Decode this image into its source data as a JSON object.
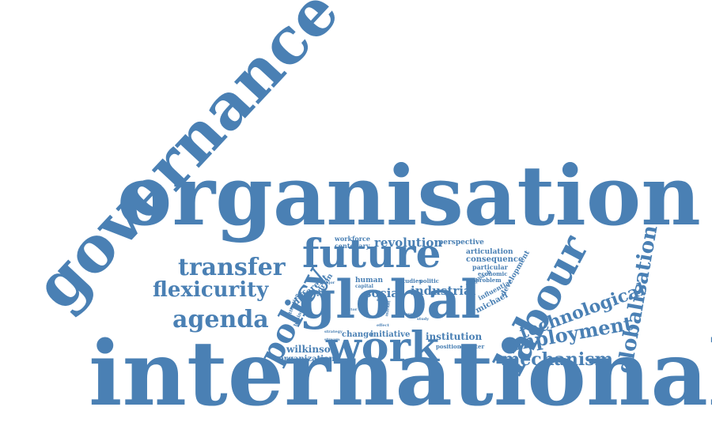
{
  "color": "#4a80b4",
  "words": {
    "international": "international",
    "organisation": "organisation",
    "governance": "governance",
    "future": "future",
    "global": "global",
    "work": "work",
    "labour": "labour",
    "policy": "policy",
    "transfer": "transfer",
    "flexicurity": "flexicurity",
    "agenda": "agenda",
    "technological": "technological",
    "employment": "employment",
    "mechanism": "mechanism",
    "globalisation": "globalisation",
    "revolution": "revolution",
    "social": "social",
    "industrial": "industrial",
    "institution": "institution",
    "wilkinson": "wilkinson",
    "organization": "organization",
    "articulation": "articulation",
    "consequence": "consequence",
    "workforce": "workforce",
    "centenary": "centenary",
    "perspective": "perspective",
    "particular": "particular",
    "economic": "economic",
    "problem": "problem",
    "development": "development",
    "influential": "influential",
    "michael": "michael",
    "different": "different",
    "adrian": "adrian",
    "human": "human",
    "capital": "capital",
    "studies": "studies",
    "politic": "politic",
    "approach": "approach",
    "change": "change",
    "initiative": "initiative",
    "position": "position",
    "chapter": "chapter",
    "attention": "attention",
    "business": "business",
    "actor": "actor",
    "strategy": "strategy",
    "stream": "stream",
    "most": "most",
    "effect": "effect",
    "level": "level",
    "future2": "future",
    "study": "study",
    "market": "market",
    "major": "major",
    "context": "context"
  }
}
